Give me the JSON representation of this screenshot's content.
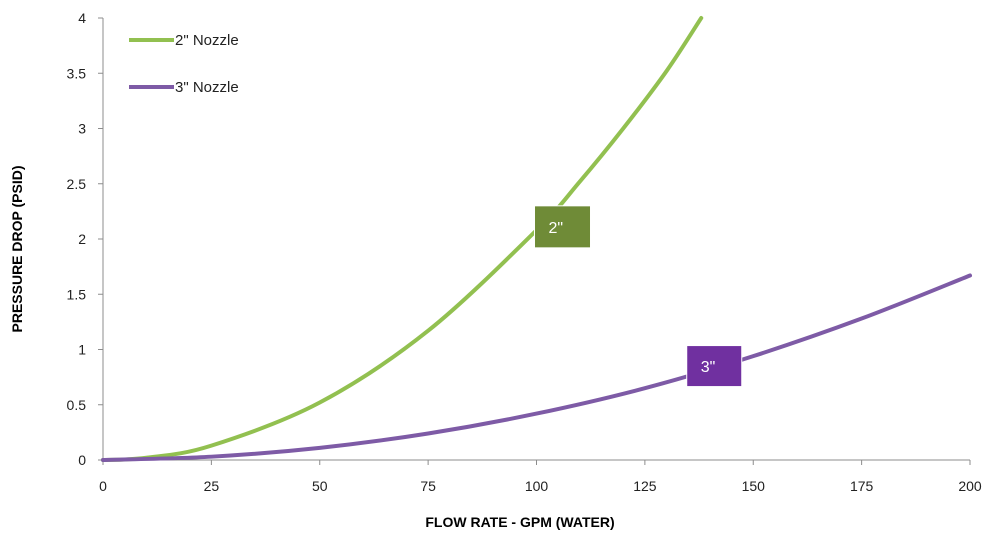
{
  "chart_data": {
    "type": "line",
    "title": "",
    "xlabel": "FLOW RATE - GPM (WATER)",
    "ylabel": "PRESSURE DROP (PSID)",
    "xlim": [
      0,
      200
    ],
    "ylim": [
      0,
      4
    ],
    "x_ticks": [
      0,
      25,
      50,
      75,
      100,
      125,
      150,
      175,
      200
    ],
    "y_ticks": [
      0,
      0.5,
      1,
      1.5,
      2,
      2.5,
      3,
      3.5,
      4
    ],
    "y_tick_labels": [
      "0",
      "0.5",
      "1",
      "1.5",
      "2",
      "2.5",
      "3",
      "3.5",
      "4"
    ],
    "grid": false,
    "legend_position": "top-left",
    "series": [
      {
        "name": "2\" Nozzle",
        "color": "#92c050",
        "x": [
          0,
          10,
          25,
          50,
          75,
          100,
          110,
          120,
          130,
          138
        ],
        "y": [
          0,
          0.02,
          0.13,
          0.52,
          1.17,
          2.08,
          2.52,
          3.0,
          3.52,
          4.0
        ]
      },
      {
        "name": "3\" Nozzle",
        "color": "#7e5ba6",
        "x": [
          0,
          25,
          50,
          75,
          100,
          125,
          150,
          175,
          200
        ],
        "y": [
          0,
          0.03,
          0.11,
          0.24,
          0.42,
          0.65,
          0.94,
          1.28,
          1.67
        ]
      }
    ],
    "annotations": [
      {
        "text": "2\"",
        "x": 106,
        "y": 2.11,
        "bg": "#6f8b37"
      },
      {
        "text": "3\"",
        "x": 141,
        "y": 0.85,
        "bg": "#7030a0"
      }
    ]
  }
}
